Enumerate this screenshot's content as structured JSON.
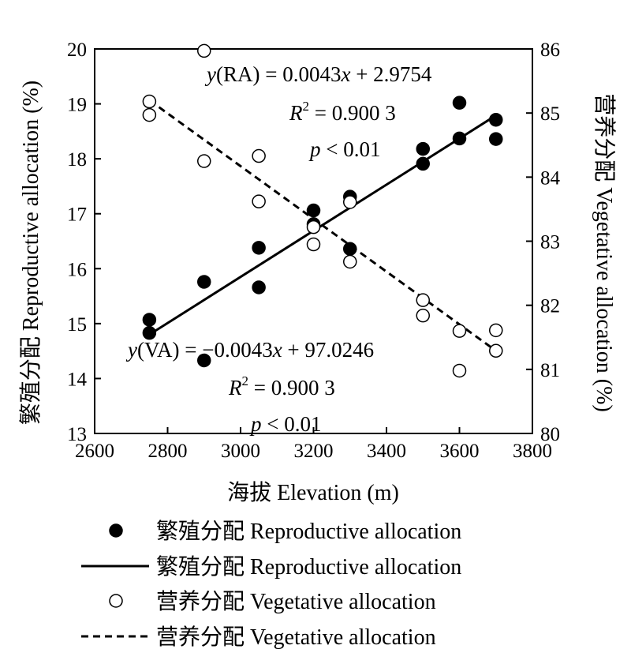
{
  "chart_data": {
    "type": "scatter",
    "xlabel": "海拔 Elevation (m)",
    "ylabel_left": "繁殖分配 Reproductive allocation (%)",
    "ylabel_right": "营养分配 Vegetative allocation (%)",
    "xlim": [
      2600,
      3800
    ],
    "ylim_left": [
      13,
      20
    ],
    "ylim_right": [
      80,
      86
    ],
    "x_ticks": [
      "2600",
      "2800",
      "3000",
      "3200",
      "3400",
      "3600",
      "3800"
    ],
    "y_left_ticks": [
      "13",
      "14",
      "15",
      "16",
      "17",
      "18",
      "19",
      "20"
    ],
    "y_right_ticks": [
      "80",
      "81",
      "82",
      "83",
      "84",
      "85",
      "86"
    ],
    "grid": false,
    "series": [
      {
        "name": "繁殖分配 Reproductive allocation",
        "marker": "filled-circle",
        "axis": "left",
        "points": [
          {
            "x": 2750,
            "y": 15.07
          },
          {
            "x": 2750,
            "y": 14.83
          },
          {
            "x": 2900,
            "y": 15.76
          },
          {
            "x": 2900,
            "y": 14.33
          },
          {
            "x": 3050,
            "y": 16.38
          },
          {
            "x": 3050,
            "y": 15.66
          },
          {
            "x": 3200,
            "y": 17.06
          },
          {
            "x": 3200,
            "y": 16.81
          },
          {
            "x": 3300,
            "y": 17.31
          },
          {
            "x": 3300,
            "y": 16.36
          },
          {
            "x": 3500,
            "y": 18.18
          },
          {
            "x": 3500,
            "y": 17.91
          },
          {
            "x": 3600,
            "y": 19.02
          },
          {
            "x": 3600,
            "y": 18.37
          },
          {
            "x": 3700,
            "y": 18.71
          },
          {
            "x": 3700,
            "y": 18.36
          }
        ]
      },
      {
        "name": "繁殖分配 Reproductive allocation",
        "type": "line",
        "style": "solid",
        "axis": "left",
        "x": [
          2750,
          3700
        ],
        "y": [
          14.8,
          18.79
        ]
      },
      {
        "name": "营养分配 Vegetative allocation",
        "marker": "open-circle",
        "axis": "right",
        "points": [
          {
            "x": 2750,
            "y": 85.18
          },
          {
            "x": 2750,
            "y": 84.97
          },
          {
            "x": 2900,
            "y": 85.97
          },
          {
            "x": 2900,
            "y": 84.25
          },
          {
            "x": 3050,
            "y": 84.33
          },
          {
            "x": 3050,
            "y": 83.62
          },
          {
            "x": 3200,
            "y": 83.22
          },
          {
            "x": 3200,
            "y": 82.95
          },
          {
            "x": 3300,
            "y": 83.61
          },
          {
            "x": 3300,
            "y": 82.68
          },
          {
            "x": 3500,
            "y": 82.08
          },
          {
            "x": 3500,
            "y": 81.84
          },
          {
            "x": 3600,
            "y": 81.6
          },
          {
            "x": 3600,
            "y": 80.98
          },
          {
            "x": 3700,
            "y": 81.61
          },
          {
            "x": 3700,
            "y": 81.29
          }
        ]
      },
      {
        "name": "营养分配 Vegetative allocation",
        "type": "line",
        "style": "dashed",
        "axis": "right",
        "x": [
          2750,
          3700
        ],
        "y": [
          85.2,
          81.29
        ]
      }
    ],
    "annotations": {
      "ra": {
        "eq_prefix": "y",
        "eq_rest": "(RA) = 0.0043",
        "eq_x": "x",
        "eq_tail": " + 2.9754",
        "r2_R": "R",
        "r2_sup": "2",
        "r2_rest": " = 0.900 3",
        "p_p": "p",
        "p_rest": " < 0.01"
      },
      "va": {
        "eq_prefix": "y",
        "eq_rest": "(VA) = −0.0043",
        "eq_x": "x",
        "eq_tail": " + 97.0246",
        "r2_R": "R",
        "r2_sup": "2",
        "r2_rest": " = 0.900 3",
        "p_p": "p",
        "p_rest": " < 0.01"
      }
    },
    "legend": [
      {
        "label": "繁殖分配 Reproductive allocation",
        "symbol": "filled-circle"
      },
      {
        "label": "繁殖分配 Reproductive allocation",
        "symbol": "solid-line"
      },
      {
        "label": "营养分配 Vegetative allocation",
        "symbol": "open-circle"
      },
      {
        "label": "营养分配 Vegetative allocation",
        "symbol": "dashed-line"
      }
    ],
    "legend_position": "below"
  }
}
